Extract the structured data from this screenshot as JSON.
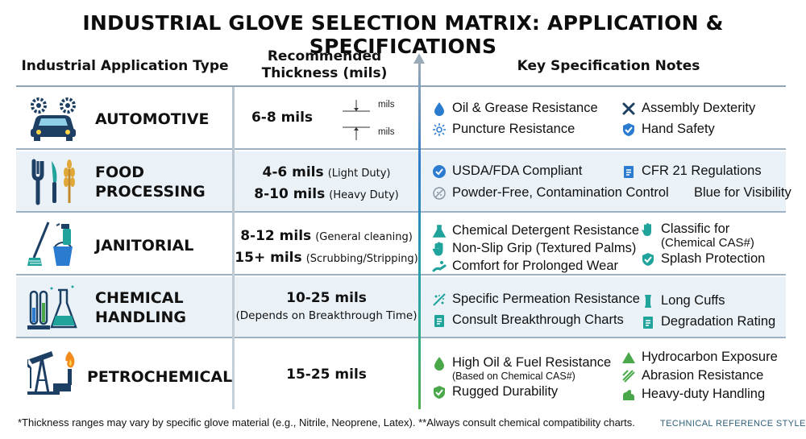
{
  "title": "INDUSTRIAL GLOVE SELECTION MATRIX: APPLICATION & SPECIFICATIONS",
  "headers": {
    "application": "Industrial Application Type",
    "thickness_line1": "Recommended",
    "thickness_line2": "Thickness (mils)",
    "notes": "Key Specification Notes"
  },
  "rows": [
    {
      "name_line1": "AUTOMOTIVE",
      "icon": "car-gears-icon",
      "thickness": "6-8 mils",
      "diagram_label_top": "mils",
      "diagram_label_bottom": "mils",
      "notes": [
        {
          "text": "Oil & Grease Resistance",
          "icon": "droplet-icon"
        },
        {
          "text": "Assembly Dexterity",
          "icon": "wrench-icon"
        },
        {
          "text": "Puncture Resistance",
          "icon": "burst-icon"
        },
        {
          "text": "Hand Safety",
          "icon": "shield-check-icon"
        }
      ]
    },
    {
      "name_line1": "FOOD",
      "name_line2": "PROCESSING",
      "icon": "fork-knife-wheat-icon",
      "thick_lines": [
        {
          "big": "4-6 mils",
          "small": "(Light Duty)"
        },
        {
          "big": "8-10 mils",
          "small": "(Heavy Duty)"
        }
      ],
      "notes": [
        {
          "text": "USDA/FDA Compliant",
          "icon": "check-badge-icon"
        },
        {
          "text": "CFR 21 Regulations",
          "icon": "document-icon"
        },
        {
          "text": "Powder-Free, Contamination Control",
          "icon": "no-powder-icon"
        },
        {
          "text": "Blue for Visibility"
        }
      ]
    },
    {
      "name_line1": "JANITORIAL",
      "icon": "mop-bucket-spray-icon",
      "thick_lines": [
        {
          "big": "8-12 mils",
          "small": "(General cleaning)"
        },
        {
          "big": "15+ mils",
          "small": "(Scrubbing/Stripping)"
        }
      ],
      "notes": [
        {
          "text": "Chemical Detergent Resistance",
          "icon": "flask-icon"
        },
        {
          "text": "Non-Slip Grip (Textured Palms)",
          "icon": "hand-icon"
        },
        {
          "text": "Comfort for Prolonged Wear",
          "icon": "hand-wave-icon"
        },
        {
          "text": "Classific for",
          "text2": "(Chemical CAS#)",
          "icon": "glove-icon"
        },
        {
          "text": "Splash Protection",
          "icon": "shield-check-icon"
        }
      ]
    },
    {
      "name_line1": "CHEMICAL",
      "name_line2": "HANDLING",
      "icon": "test-tubes-flask-icon",
      "thickness": "10-25 mils",
      "thickness_note": "(Depends on Breakthrough Time)",
      "notes": [
        {
          "text": "Specific Permeation Resistance",
          "icon": "permeation-icon"
        },
        {
          "text": "Long Cuffs",
          "icon": "cuff-icon"
        },
        {
          "text": "Consult Breakthrough Charts",
          "icon": "document-icon"
        },
        {
          "text": "Degradation Rating",
          "icon": "document-icon"
        }
      ]
    },
    {
      "name_line1": "PETROCHEMICAL",
      "icon": "oil-pump-flame-icon",
      "thickness": "15-25 mils",
      "notes": [
        {
          "text": "High Oil & Fuel Resistance",
          "text2": "(Based on Chemical CAS#)",
          "icon": "droplet-icon"
        },
        {
          "text": "Hydrocarbon Exposure",
          "icon": "triangle-icon"
        },
        {
          "text": "Abrasion Resistance",
          "icon": "abrasion-icon"
        },
        {
          "text": "Rugged Durability",
          "icon": "shield-check-icon"
        },
        {
          "text": "Heavy-duty Handling",
          "icon": "arm-icon"
        }
      ]
    }
  ],
  "footer": "*Thickness ranges may vary by specific glove material (e.g., Nitrile, Neoprene, Latex). **Always consult chemical compatibility charts.",
  "footer_tag": "TECHNICAL REFERENCE STYLE",
  "colors": {
    "navy": "#1d3f63",
    "teal": "#1fa39a",
    "blue": "#2b7bd0",
    "green": "#4aa84a",
    "orange": "#f28a1c",
    "row_shade": "#eaf2f8"
  }
}
